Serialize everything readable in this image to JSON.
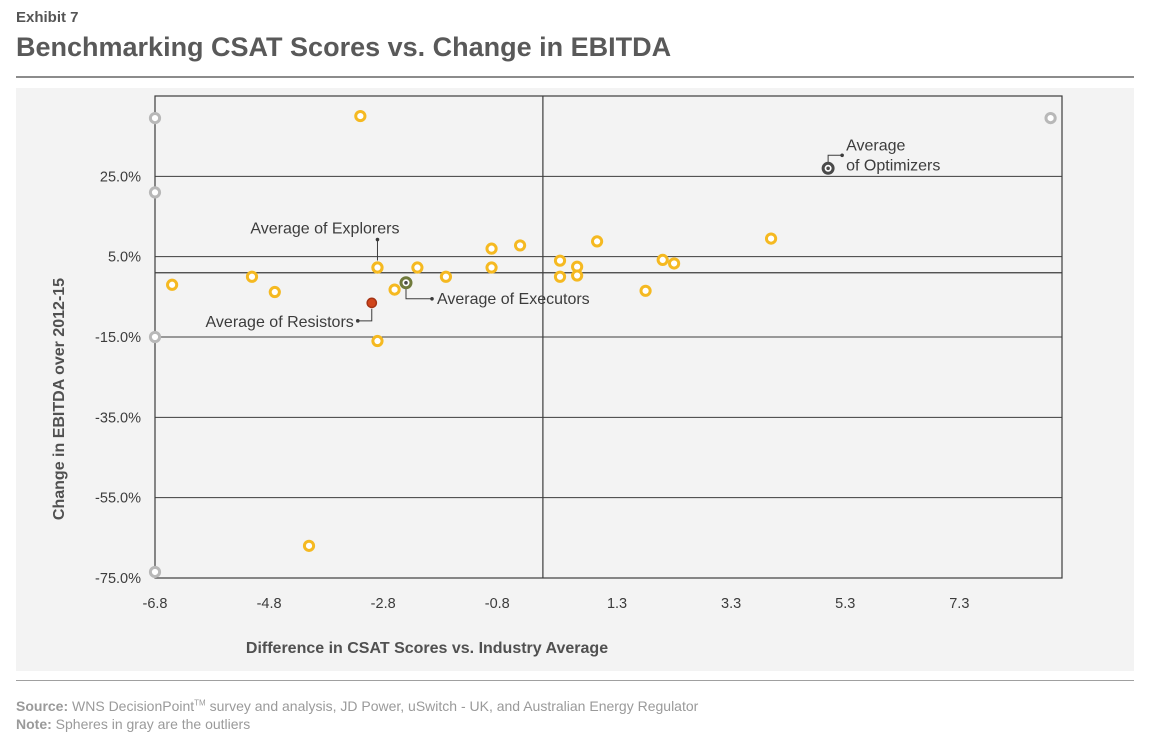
{
  "header": {
    "exhibit": "Exhibit 7",
    "title": "Benchmarking CSAT Scores vs. Change in EBITDA"
  },
  "footer": {
    "source_label": "Source:",
    "source_text_a": "WNS DecisionPoint",
    "source_tm": "TM",
    "source_text_b": " survey and analysis, JD Power, uSwitch - UK, and Australian Energy Regulator",
    "note_label": "Note:",
    "note_text": "Spheres in gray are the outliers"
  },
  "colors": {
    "regular": "#f5b921",
    "outlier": "#b8b8b8",
    "resistors": "#d0451b",
    "executors": "#707a3c",
    "optimizers": "#4a4a4a",
    "explorers": "#f5b921",
    "grid": "#3c3c3c",
    "panel": "#f3f3f3"
  },
  "chart_data": {
    "type": "scatter",
    "title": "Benchmarking CSAT Scores vs. Change in EBITDA",
    "xlabel": "Difference in CSAT Scores vs. Industry Average",
    "ylabel": "Change in EBITDA over 2012-15",
    "x_ticks": [
      "-6.8",
      "-4.8",
      "-2.8",
      "-0.8",
      "1.3",
      "3.3",
      "5.3",
      "7.3"
    ],
    "y_ticks": [
      "25.0%",
      "5.0%",
      "-15.0%",
      "-35.0%",
      "-55.0%",
      "-75.0%"
    ],
    "x_tick_values": [
      -6.8,
      -4.8,
      -2.8,
      -0.8,
      1.3,
      3.3,
      5.3,
      7.3
    ],
    "y_tick_values": [
      25,
      5,
      -15,
      -35,
      -55,
      -75
    ],
    "xlim": [
      -6.8,
      9.1
    ],
    "ylim": [
      -75,
      45
    ],
    "reference_lines": {
      "x": 0.0,
      "y": 1.0
    },
    "grid": "horizontal",
    "series": [
      {
        "kind": "regular",
        "points": [
          {
            "x": -3.2,
            "y": 40.0
          },
          {
            "x": -6.5,
            "y": -2.0
          },
          {
            "x": -5.1,
            "y": 0.0
          },
          {
            "x": -4.7,
            "y": -3.8
          },
          {
            "x": -2.9,
            "y": 2.3
          },
          {
            "x": -2.2,
            "y": 2.3
          },
          {
            "x": -1.7,
            "y": 0.0
          },
          {
            "x": -0.9,
            "y": 7.0
          },
          {
            "x": -0.9,
            "y": 2.3
          },
          {
            "x": -0.4,
            "y": 7.8
          },
          {
            "x": 0.3,
            "y": 4.0
          },
          {
            "x": 0.3,
            "y": 0.0
          },
          {
            "x": 0.6,
            "y": 2.5
          },
          {
            "x": 0.6,
            "y": 0.3
          },
          {
            "x": 0.95,
            "y": 8.8
          },
          {
            "x": 1.8,
            "y": -3.5
          },
          {
            "x": 2.1,
            "y": 4.2
          },
          {
            "x": 2.3,
            "y": 3.3
          },
          {
            "x": 4.0,
            "y": 9.5
          },
          {
            "x": -2.9,
            "y": -16.0
          },
          {
            "x": -4.1,
            "y": -67.0
          },
          {
            "x": -2.6,
            "y": -3.2
          }
        ]
      },
      {
        "kind": "outlier",
        "points": [
          {
            "x": -6.8,
            "y": 39.5
          },
          {
            "x": -6.8,
            "y": 21.0
          },
          {
            "x": -6.8,
            "y": -15.0
          },
          {
            "x": -6.8,
            "y": -73.5
          },
          {
            "x": 8.9,
            "y": 39.5
          }
        ]
      }
    ],
    "averages": [
      {
        "name": "resistors",
        "label": "Average of Resistors",
        "x": -3.0,
        "y": -6.5
      },
      {
        "name": "executors",
        "label": "Average of Executors",
        "x": -2.4,
        "y": -1.5
      },
      {
        "name": "explorers",
        "label": "Average of Explorers",
        "x": -2.9,
        "y": 2.3
      },
      {
        "name": "optimizers",
        "label_lines": [
          "Average",
          "of Optimizers"
        ],
        "x": 5.0,
        "y": 27.0
      }
    ]
  }
}
